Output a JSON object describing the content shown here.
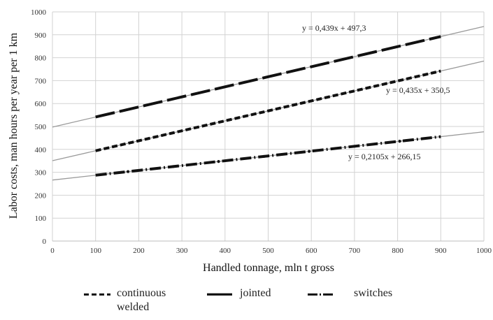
{
  "chart_data": {
    "type": "line",
    "title": "",
    "xlabel": "Handled tonnage, mln t gross",
    "ylabel": "Labor costs, man hours per year per 1 km",
    "xlim": [
      0,
      1000
    ],
    "ylim": [
      0,
      1000
    ],
    "x_ticks": [
      "0",
      "100",
      "200",
      "300",
      "400",
      "500",
      "600",
      "700",
      "800",
      "900",
      "1000"
    ],
    "y_ticks": [
      "0",
      "100",
      "200",
      "300",
      "400",
      "500",
      "600",
      "700",
      "800",
      "900",
      "1000"
    ],
    "grid": true,
    "legend_position": "bottom",
    "series": [
      {
        "name": "jointed",
        "style": "long-dash",
        "color": "#111111",
        "x": [
          100,
          900
        ],
        "y": [
          541.2,
          892.4
        ],
        "trendline": {
          "slope": 0.439,
          "intercept": 497.3,
          "equation": "y = 0,439x + 497,3"
        }
      },
      {
        "name": "continuous welded",
        "style": "short-dash",
        "color": "#111111",
        "x": [
          100,
          900
        ],
        "y": [
          394.0,
          742.0
        ],
        "trendline": {
          "slope": 0.435,
          "intercept": 350.5,
          "equation": "y = 0,435x + 350,5"
        }
      },
      {
        "name": "switches",
        "style": "dash-dot",
        "color": "#111111",
        "x": [
          100,
          900
        ],
        "y": [
          287.2,
          455.6
        ],
        "trendline": {
          "slope": 0.2105,
          "intercept": 266.15,
          "equation": "y = 0,2105x + 266,15"
        }
      }
    ]
  },
  "legend": {
    "items": [
      {
        "label": "continuous\nwelded",
        "series": "continuous welded"
      },
      {
        "label": "jointed",
        "series": "jointed"
      },
      {
        "label": "switches",
        "series": "switches"
      }
    ]
  }
}
